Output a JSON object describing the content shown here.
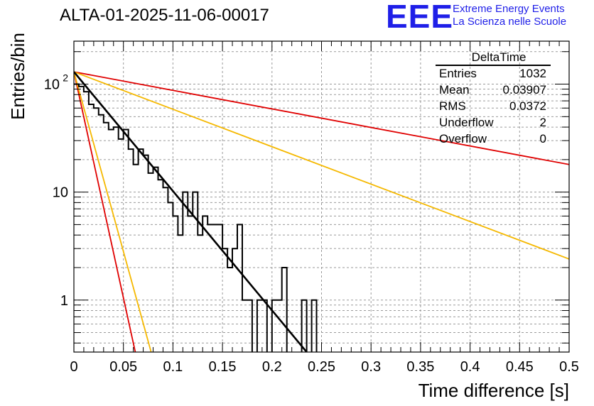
{
  "header": {
    "title": "ALTA-01-2025-11-06-00017",
    "logo_text": "EEE",
    "logo_line1": "Extreme Energy Events",
    "logo_line2": "La Scienza nelle Scuole"
  },
  "stats": {
    "name": "DeltaTime",
    "rows": [
      {
        "label": "Entries",
        "value": "1032"
      },
      {
        "label": "Mean",
        "value": "0.03907"
      },
      {
        "label": "RMS",
        "value": "0.0372"
      },
      {
        "label": "Underflow",
        "value": "2"
      },
      {
        "label": "Overflow",
        "value": "0"
      }
    ]
  },
  "colors": {
    "histogram": "#000000",
    "fit": "#000000",
    "red": "#e00000",
    "yellow": "#f5b800",
    "grid": "#9a9a9a"
  },
  "chart_data": {
    "type": "line",
    "subtype": "histogram_log",
    "xlabel": "Time difference [s]",
    "ylabel": "Entries/bin",
    "xlim": [
      0,
      0.5
    ],
    "ylim": [
      0.33,
      250
    ],
    "yscale": "log",
    "grid": true,
    "x_ticks": [
      "0",
      "0.05",
      "0.1",
      "0.15",
      "0.2",
      "0.25",
      "0.3",
      "0.35",
      "0.4",
      "0.45",
      "0.5"
    ],
    "x_tick_values": [
      0,
      0.05,
      0.1,
      0.15,
      0.2,
      0.25,
      0.3,
      0.35,
      0.4,
      0.45,
      0.5
    ],
    "y_ticks": [
      {
        "value": 1,
        "label": "1"
      },
      {
        "value": 10,
        "label": "10"
      },
      {
        "value": 100,
        "label": "10",
        "exp": "2"
      }
    ],
    "bin_width": 0.005,
    "bin_counts": [
      100,
      95,
      85,
      65,
      60,
      52,
      44,
      38,
      40,
      31,
      38,
      25,
      18,
      25,
      22,
      15,
      17,
      13,
      11,
      8,
      6,
      4,
      10,
      6,
      10,
      4,
      6,
      5,
      5,
      5,
      3,
      2,
      3,
      5,
      1,
      1,
      0,
      1,
      1,
      0,
      1,
      1,
      2,
      0,
      0,
      0,
      1,
      0,
      1
    ],
    "series": [
      {
        "name": "exponential fit",
        "color": "#000000",
        "points": [
          [
            0,
            130
          ],
          [
            0.235,
            0.33
          ]
        ]
      },
      {
        "name": "red slow",
        "color": "#e00000",
        "points": [
          [
            0,
            130
          ],
          [
            0.5,
            18
          ]
        ]
      },
      {
        "name": "yellow slow",
        "color": "#f5b800",
        "points": [
          [
            0,
            130
          ],
          [
            0.5,
            2.4
          ]
        ]
      },
      {
        "name": "red fast",
        "color": "#e00000",
        "points": [
          [
            0,
            130
          ],
          [
            0.062,
            0.33
          ]
        ]
      },
      {
        "name": "yellow fast",
        "color": "#f5b800",
        "points": [
          [
            0,
            130
          ],
          [
            0.078,
            0.33
          ]
        ]
      }
    ]
  }
}
